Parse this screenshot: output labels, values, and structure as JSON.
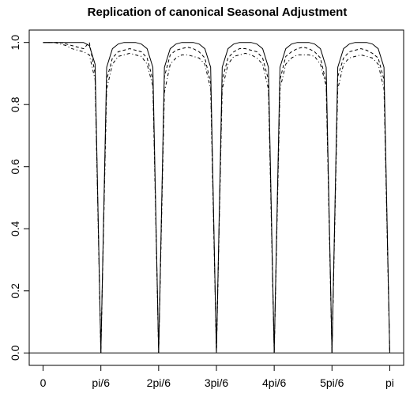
{
  "chart_data": {
    "type": "line",
    "title": "Replication of canonical Seasonal Adjustment",
    "x": [
      0,
      0.0524,
      0.1047,
      0.1571,
      0.2094,
      0.2618,
      0.3142,
      0.3665,
      0.4189,
      0.4712,
      0.5236,
      0.576,
      0.6283,
      0.6807,
      0.733,
      0.7854,
      0.8378,
      0.8901,
      0.9425,
      0.9948,
      1.0472,
      1.0996,
      1.1519,
      1.2043,
      1.2566,
      1.309,
      1.3614,
      1.4137,
      1.4661,
      1.5184,
      1.5708,
      1.6232,
      1.6755,
      1.7279,
      1.7802,
      1.8326,
      1.885,
      1.9373,
      1.9897,
      2.042,
      2.0944,
      2.1468,
      2.1991,
      2.2515,
      2.3038,
      2.3562,
      2.4086,
      2.4609,
      2.5133,
      2.5656,
      2.618,
      2.6704,
      2.7227,
      2.7751,
      2.8274,
      2.8798,
      2.9322,
      2.9845,
      3.0369,
      3.0892,
      3.1416
    ],
    "series": [
      {
        "color": "#000000",
        "line_style": "solid",
        "values": [
          1,
          1,
          1,
          1,
          1,
          1,
          1,
          1,
          0.99,
          0.93,
          0,
          0.92,
          0.98,
          0.995,
          1,
          1,
          1,
          0.995,
          0.98,
          0.92,
          0,
          0.92,
          0.98,
          0.995,
          1,
          1,
          1,
          0.995,
          0.98,
          0.92,
          0,
          0.92,
          0.98,
          0.995,
          1,
          1,
          1,
          0.995,
          0.98,
          0.92,
          0,
          0.92,
          0.98,
          0.995,
          1,
          1,
          1,
          0.995,
          0.98,
          0.92,
          0,
          0.92,
          0.98,
          0.995,
          1,
          1,
          1,
          0.995,
          0.98,
          0.92,
          0
        ]
      },
      {
        "color": "#000000",
        "line_style": "dashed",
        "values": [
          1,
          1,
          1,
          1,
          0.995,
          0.99,
          0.985,
          0.98,
          1.0,
          0.9,
          0,
          0.88,
          0.95,
          0.97,
          0.975,
          0.98,
          0.975,
          0.97,
          0.95,
          0.88,
          0,
          0.89,
          0.96,
          0.975,
          0.98,
          0.985,
          0.98,
          0.97,
          0.95,
          0.87,
          0,
          0.88,
          0.95,
          0.97,
          0.98,
          0.98,
          0.975,
          0.97,
          0.95,
          0.88,
          0,
          0.88,
          0.955,
          0.97,
          0.98,
          0.985,
          0.98,
          0.97,
          0.95,
          0.87,
          0,
          0.89,
          0.95,
          0.97,
          0.975,
          0.98,
          0.975,
          0.965,
          0.95,
          0.88,
          0
        ]
      },
      {
        "color": "#000000",
        "line_style": "dotdash",
        "values": [
          1,
          1,
          1,
          0.995,
          0.99,
          0.98,
          0.975,
          0.97,
          0.96,
          0.88,
          0,
          0.85,
          0.93,
          0.955,
          0.96,
          0.965,
          0.96,
          0.955,
          0.93,
          0.86,
          0,
          0.84,
          0.93,
          0.95,
          0.96,
          0.96,
          0.955,
          0.95,
          0.93,
          0.85,
          0,
          0.85,
          0.93,
          0.955,
          0.96,
          0.965,
          0.96,
          0.95,
          0.93,
          0.85,
          0,
          0.85,
          0.93,
          0.95,
          0.96,
          0.96,
          0.96,
          0.955,
          0.93,
          0.86,
          0,
          0.85,
          0.93,
          0.95,
          0.955,
          0.96,
          0.955,
          0.95,
          0.93,
          0.85,
          0
        ]
      }
    ],
    "hline": 0,
    "xlim": [
      -0.1257,
      3.2673
    ],
    "xticks": [
      0,
      {
        "value": 0.5236,
        "label": "pi/6"
      },
      {
        "value": 1.0472,
        "label": "2pi/6"
      },
      {
        "value": 1.5708,
        "label": "3pi/6"
      },
      {
        "value": 2.0944,
        "label": "4pi/6"
      },
      {
        "value": 2.618,
        "label": "5pi/6"
      },
      {
        "value": 3.1416,
        "label": "pi"
      }
    ],
    "ylim": [
      -0.04,
      1.04
    ],
    "yticks": [
      {
        "value": 0,
        "label": "0.0"
      },
      0.2,
      0.4,
      0.6,
      0.8,
      {
        "value": 1,
        "label": "1.0"
      }
    ]
  }
}
